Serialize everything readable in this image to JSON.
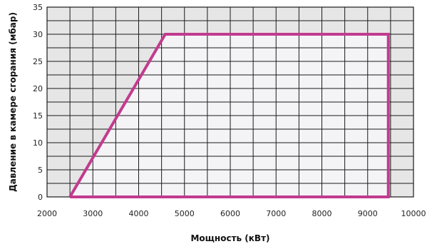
{
  "chart_data": {
    "type": "area",
    "title": "",
    "xlabel": "Мощность (кВт)",
    "ylabel": "Давление в камере сгорания (мбар)",
    "xlim": [
      2000,
      10000
    ],
    "ylim": [
      0,
      35
    ],
    "x_ticks": [
      2000,
      3000,
      4000,
      5000,
      6000,
      7000,
      8000,
      9000,
      10000
    ],
    "y_ticks": [
      0,
      5,
      10,
      15,
      20,
      25,
      30,
      35
    ],
    "x_minor_step": 500,
    "y_minor_step": 2.5,
    "grid": true,
    "background_color": "#e6e6e6",
    "grid_color": "#1a1a1a",
    "series": [
      {
        "color": "#c23b8e",
        "fill_color": "#f4f4f7",
        "points": [
          {
            "x": 2500,
            "y": 0
          },
          {
            "x": 4580,
            "y": 30
          },
          {
            "x": 9450,
            "y": 30
          },
          {
            "x": 9450,
            "y": 0
          },
          {
            "x": 2500,
            "y": 0
          }
        ]
      }
    ]
  }
}
